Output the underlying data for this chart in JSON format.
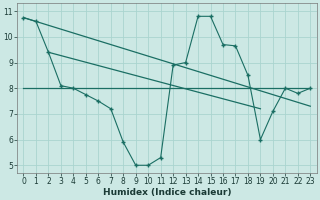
{
  "xlabel": "Humidex (Indice chaleur)",
  "background_color": "#cce8e4",
  "grid_color": "#aad4cf",
  "line_color": "#1a6e63",
  "figsize": [
    3.2,
    2.0
  ],
  "dpi": 100,
  "xlim": [
    -0.5,
    23.5
  ],
  "ylim": [
    4.7,
    11.3
  ],
  "yticks": [
    5,
    6,
    7,
    8,
    9,
    10,
    11
  ],
  "xticks": [
    0,
    1,
    2,
    3,
    4,
    5,
    6,
    7,
    8,
    9,
    10,
    11,
    12,
    13,
    14,
    15,
    16,
    17,
    18,
    19,
    20,
    21,
    22,
    23
  ],
  "line1_x": [
    0,
    1,
    2,
    3,
    4,
    5,
    6,
    7,
    8,
    9,
    10,
    11,
    12,
    13,
    14,
    15,
    16,
    17,
    18,
    19,
    20,
    21,
    22,
    23
  ],
  "line1_y": [
    10.75,
    10.6,
    9.4,
    8.1,
    8.0,
    7.75,
    7.5,
    7.2,
    5.9,
    5.0,
    5.0,
    5.3,
    8.9,
    9.0,
    10.8,
    10.8,
    9.7,
    9.65,
    8.5,
    6.0,
    7.1,
    8.0,
    7.8,
    8.0
  ],
  "line2_x": [
    0,
    23
  ],
  "line2_y": [
    8.0,
    8.0
  ],
  "line3_x": [
    0,
    23
  ],
  "line3_y": [
    10.75,
    7.3
  ],
  "line4_x": [
    2,
    19
  ],
  "line4_y": [
    9.4,
    7.2
  ],
  "xlabel_fontsize": 6.5,
  "tick_fontsize": 5.5
}
